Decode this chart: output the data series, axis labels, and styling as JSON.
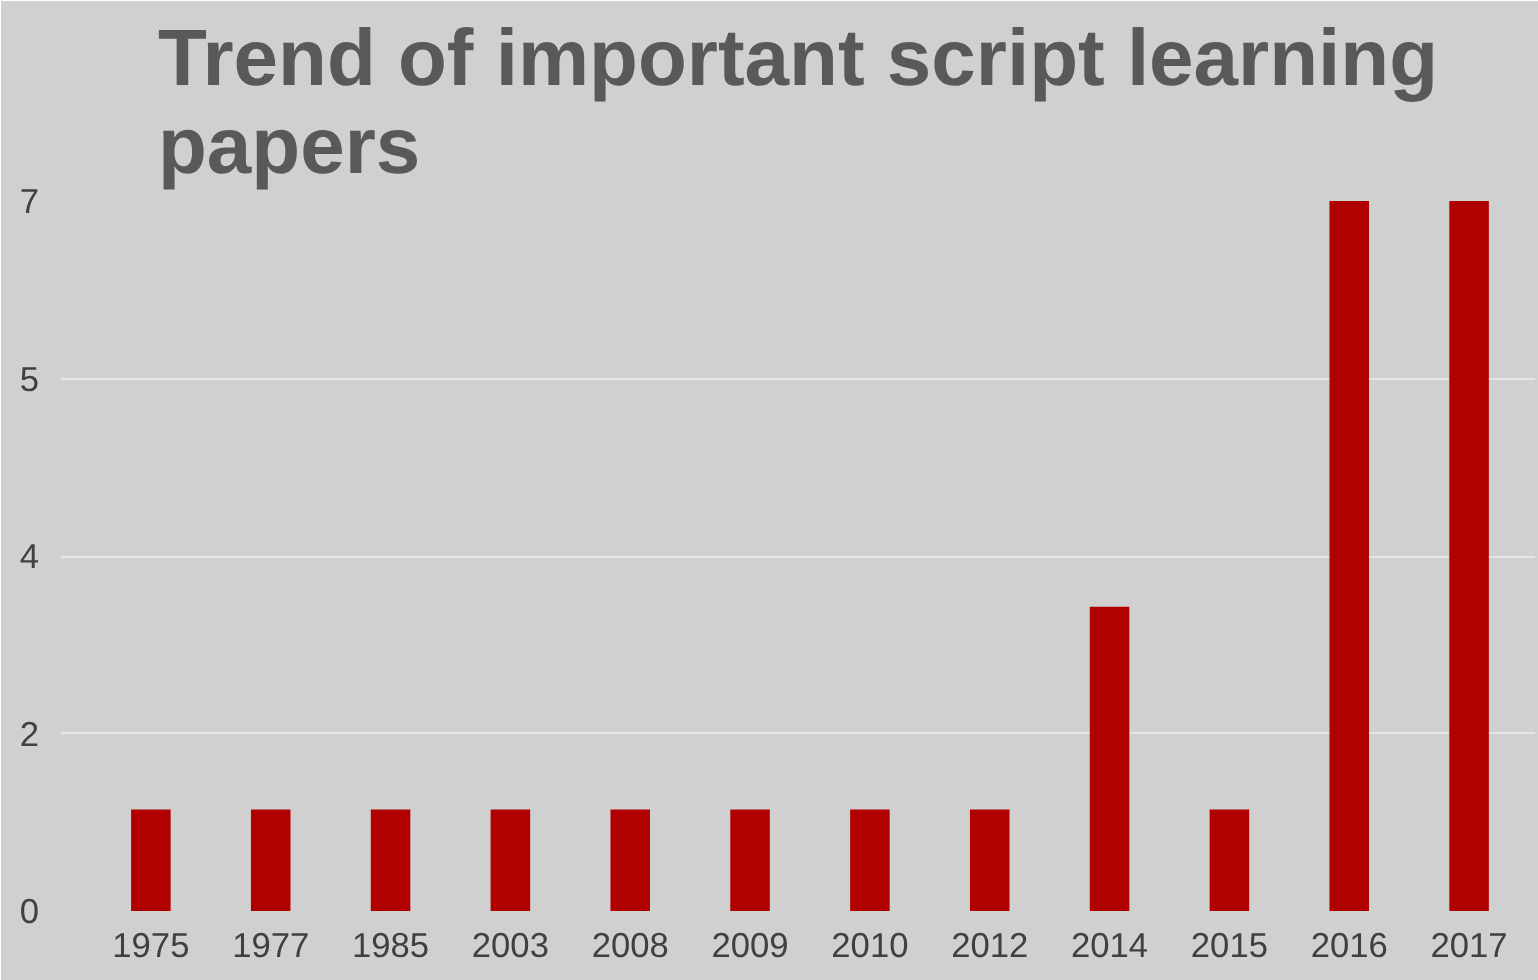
{
  "chart_data": {
    "type": "bar",
    "title": "Trend of important script learning papers",
    "categories": [
      "1975",
      "1977",
      "1985",
      "2003",
      "2008",
      "2009",
      "2010",
      "2012",
      "2014",
      "2015",
      "2016",
      "2017"
    ],
    "values": [
      1,
      1,
      1,
      1,
      1,
      1,
      1,
      1,
      3,
      1,
      7,
      7
    ],
    "color": "#b00000",
    "ylim": [
      0,
      7
    ],
    "yticks": [
      0,
      {
        "value": 1.75,
        "label": "2"
      },
      {
        "value": 3.5,
        "label": "4"
      },
      {
        "value": 5.25,
        "label": "5"
      },
      7
    ],
    "grid": "y"
  }
}
